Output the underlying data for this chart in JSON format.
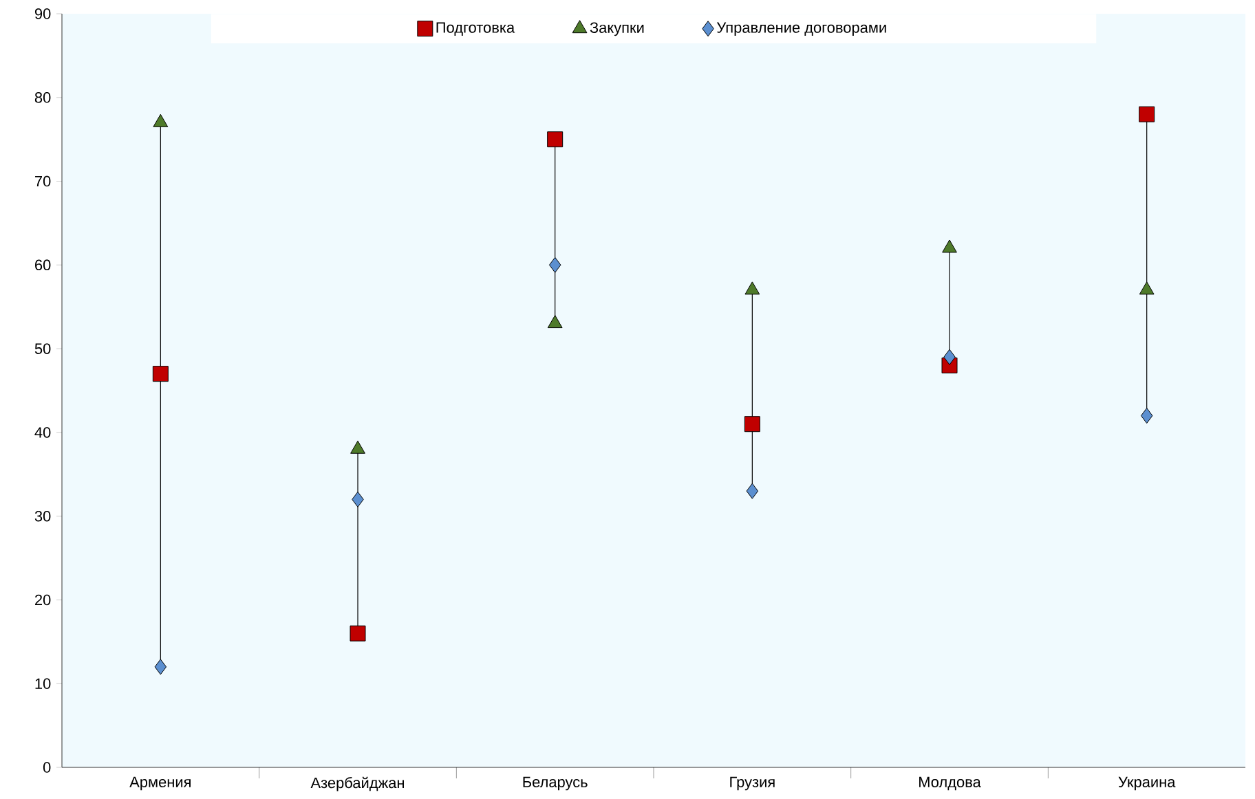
{
  "chart_data": {
    "type": "scatter",
    "categories": [
      "Армения",
      "Азербайджан",
      "Беларусь",
      "Грузия",
      "Молдова",
      "Украина"
    ],
    "series": [
      {
        "name": "Подготовка",
        "color": "#c00000",
        "marker": "square",
        "values": [
          47,
          16,
          75,
          41,
          48,
          78
        ]
      },
      {
        "name": "Закупки",
        "color": "#4e7a2a",
        "marker": "triangle",
        "values": [
          77,
          38,
          53,
          57,
          62,
          57
        ]
      },
      {
        "name": "Управление договорами",
        "color": "#5b8fd0",
        "marker": "diamond",
        "values": [
          12,
          32,
          60,
          33,
          49,
          42
        ]
      }
    ],
    "ylim": [
      0,
      90
    ],
    "yticks": [
      0,
      10,
      20,
      30,
      40,
      50,
      60,
      70,
      80,
      90
    ],
    "legend": "top"
  }
}
